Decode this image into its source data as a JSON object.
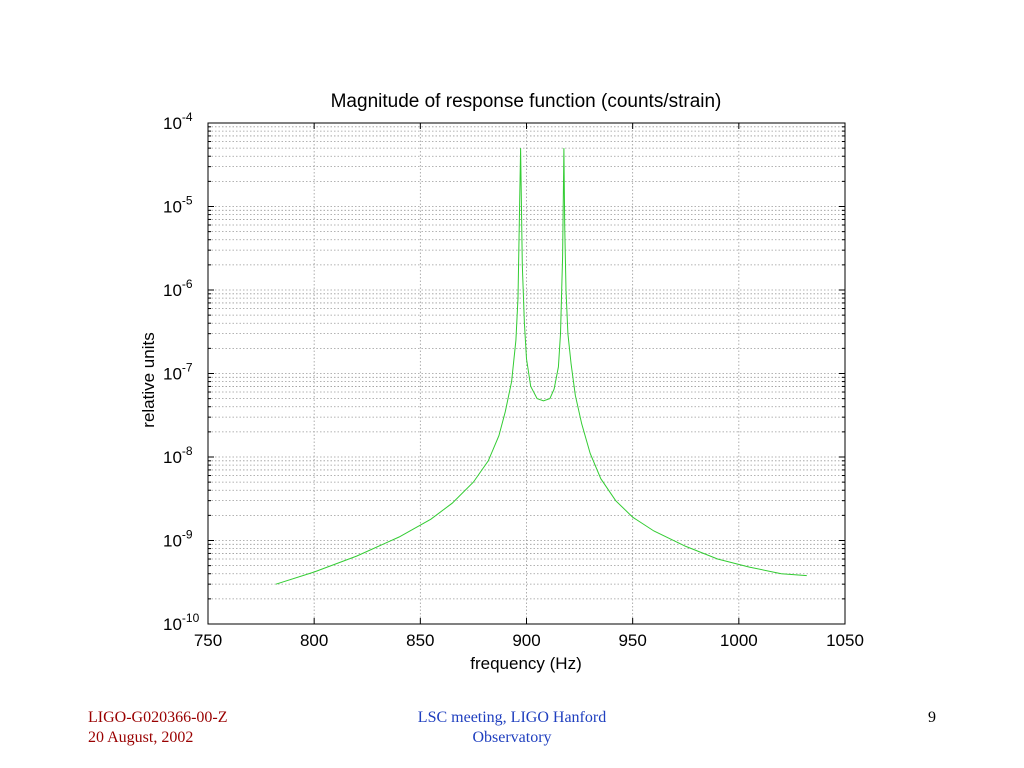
{
  "chart_data": {
    "type": "line",
    "title": "Magnitude of response function (counts/strain)",
    "xlabel": "frequency (Hz)",
    "ylabel": "relative units",
    "xlim": [
      750,
      1050
    ],
    "ylim": [
      1e-10,
      0.0001
    ],
    "yscale": "log",
    "grid": true,
    "x_ticks": [
      "750",
      "800",
      "850",
      "900",
      "950",
      "1000",
      "1050"
    ],
    "y_ticks": [
      {
        "base": "10",
        "exp": "-10"
      },
      {
        "base": "10",
        "exp": "-9"
      },
      {
        "base": "10",
        "exp": "-8"
      },
      {
        "base": "10",
        "exp": "-7"
      },
      {
        "base": "10",
        "exp": "-6"
      },
      {
        "base": "10",
        "exp": "-5"
      },
      {
        "base": "10",
        "exp": "-4"
      }
    ],
    "series": [
      {
        "color": "#33cc33",
        "x": [
          782,
          800,
          820,
          840,
          855,
          865,
          875,
          882,
          887,
          890,
          893,
          895,
          896,
          896.8,
          897.2,
          898,
          899,
          900,
          902,
          905,
          908,
          911,
          913,
          915,
          916,
          917,
          917.6,
          918,
          918.6,
          919.5,
          921,
          923,
          926,
          930,
          935,
          942,
          950,
          960,
          975,
          990,
          1005,
          1020,
          1032
        ],
        "y": [
          3e-10,
          4.2e-10,
          6.5e-10,
          1.1e-09,
          1.8e-09,
          2.8e-09,
          5e-09,
          9e-09,
          1.8e-08,
          3.5e-08,
          8e-08,
          2.5e-07,
          8e-07,
          1.2e-05,
          5e-05,
          2e-06,
          4e-07,
          1.5e-07,
          7e-08,
          5e-08,
          4.7e-08,
          5e-08,
          6.5e-08,
          1.2e-07,
          3e-07,
          2.5e-06,
          5e-05,
          6e-06,
          1e-06,
          3e-07,
          1.3e-07,
          5.5e-08,
          2.5e-08,
          1.1e-08,
          5.5e-09,
          3e-09,
          1.9e-09,
          1.3e-09,
          8.5e-10,
          6e-10,
          4.8e-10,
          4e-10,
          3.8e-10
        ]
      }
    ]
  },
  "footer": {
    "doc_id": "LIGO-G020366-00-Z",
    "date": "20 August, 2002",
    "meeting_line1": "LSC meeting, LIGO Hanford",
    "meeting_line2": "Observatory",
    "page_number": "9"
  }
}
